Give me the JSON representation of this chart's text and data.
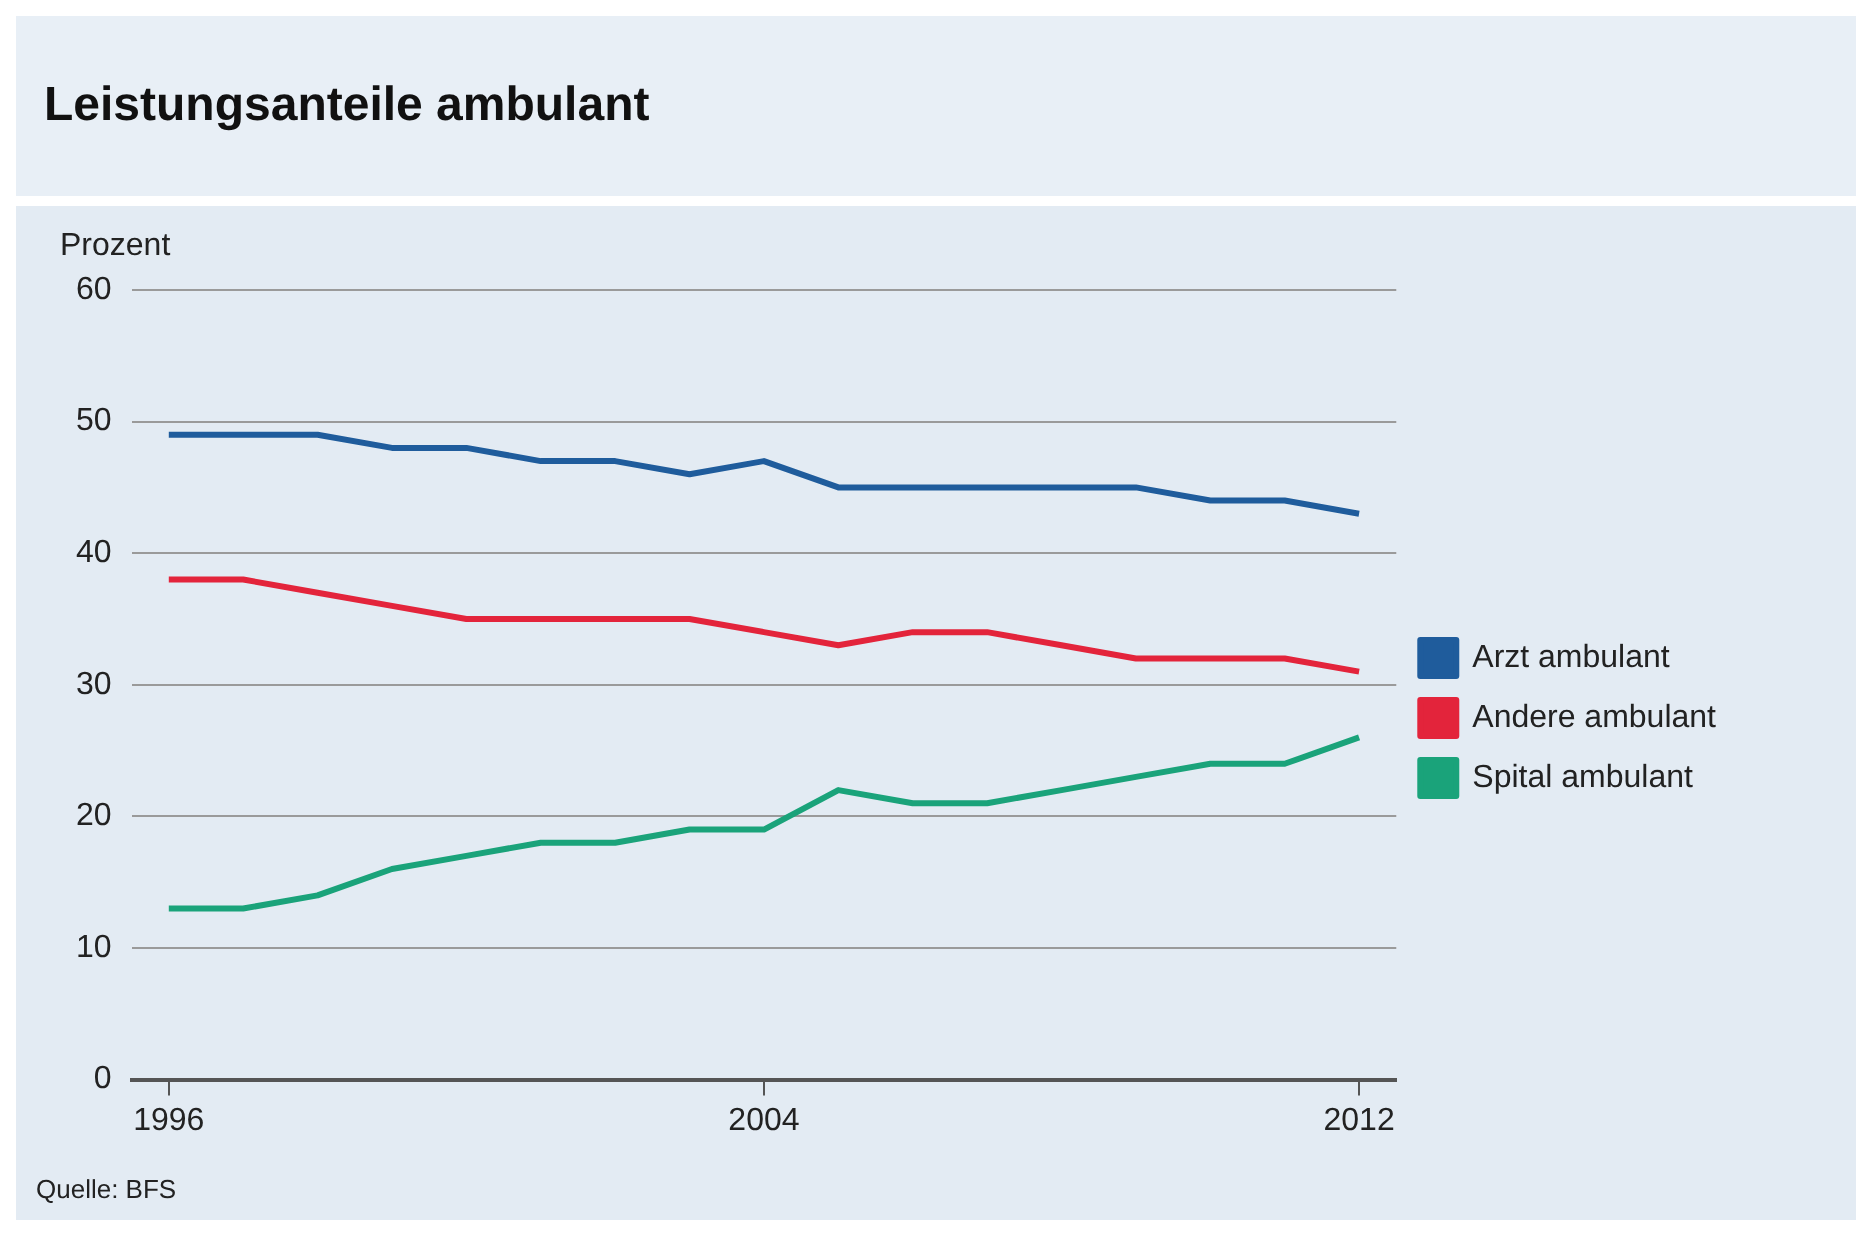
{
  "chart_data": {
    "type": "line",
    "title": "Leistungsanteile ambulant",
    "ylabel": "Prozent",
    "x": [
      1996,
      1997,
      1998,
      1999,
      2000,
      2001,
      2002,
      2003,
      2004,
      2005,
      2006,
      2007,
      2008,
      2009,
      2010,
      2011,
      2012
    ],
    "series": [
      {
        "name": "Arzt ambulant",
        "color": "#1f5c9c",
        "values": [
          49,
          49,
          49,
          48,
          48,
          47,
          47,
          46,
          47,
          45,
          45,
          45,
          45,
          45,
          44,
          44,
          43
        ]
      },
      {
        "name": "Andere ambulant",
        "color": "#e3243b",
        "values": [
          38,
          38,
          37,
          36,
          35,
          35,
          35,
          35,
          34,
          33,
          34,
          34,
          33,
          32,
          32,
          32,
          31
        ]
      },
      {
        "name": "Spital ambulant",
        "color": "#1aa37a",
        "values": [
          13,
          13,
          14,
          16,
          17,
          18,
          18,
          19,
          19,
          22,
          21,
          21,
          22,
          23,
          24,
          24,
          26
        ]
      }
    ],
    "xlim": [
      1995.5,
      2012.5
    ],
    "xticks": [
      1996,
      2004,
      2012
    ],
    "ylim": [
      0,
      60
    ],
    "yticks": [
      0,
      10,
      20,
      30,
      40,
      50,
      60
    ],
    "grid": "y",
    "legend": "right",
    "marker": "none",
    "line_style": "solid",
    "annotations": [
      "Quelle: BFS"
    ]
  }
}
